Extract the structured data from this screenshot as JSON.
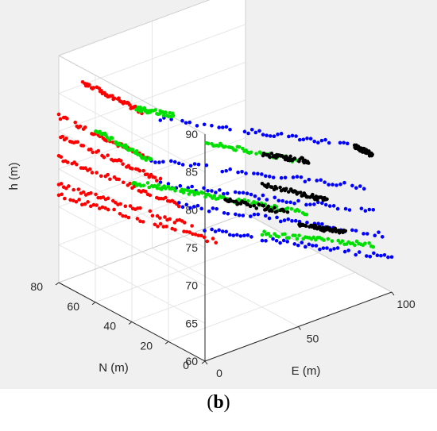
{
  "chart_data": {
    "type": "scatter",
    "title": "",
    "xlabel": "E (m)",
    "ylabel": "N (m)",
    "zlabel": "h (m)",
    "xlim": [
      0,
      100
    ],
    "ylim": [
      0,
      80
    ],
    "zlim": [
      60,
      90
    ],
    "xticks": [
      "0",
      "50",
      "100"
    ],
    "yticks": [
      "0",
      "20",
      "40",
      "60",
      "80"
    ],
    "zticks": [
      "60",
      "65",
      "70",
      "75",
      "80",
      "85",
      "90"
    ],
    "grid": true,
    "series": [
      {
        "color": "#ff0000",
        "tracks": [
          {
            "from": [
              3,
              70,
              87.5
            ],
            "to": [
              20,
              55,
              84.0
            ]
          },
          {
            "from": [
              0,
              80,
              82.0
            ],
            "to": [
              30,
              62,
              76.0
            ]
          },
          {
            "from": [
              0,
              80,
              79.5
            ],
            "to": [
              30,
              55,
              74.0
            ]
          },
          {
            "from": [
              0,
              80,
              76.5
            ],
            "to": [
              35,
              50,
              71.0
            ]
          },
          {
            "from": [
              0,
              80,
              73.0
            ],
            "to": [
              40,
              48,
              68.0
            ]
          },
          {
            "from": [
              0,
              80,
              71.5
            ],
            "to": [
              45,
              40,
              66.5
            ]
          }
        ]
      },
      {
        "color": "#0000ff",
        "tracks": [
          {
            "from": [
              25,
              52,
              83.0
            ],
            "to": [
              90,
              10,
              79.0
            ]
          },
          {
            "from": [
              30,
              60,
              76.0
            ],
            "to": [
              95,
              10,
              73.0
            ]
          },
          {
            "from": [
              30,
              55,
              73.5
            ],
            "to": [
              95,
              5,
              70.5
            ]
          },
          {
            "from": [
              35,
              50,
              71.0
            ],
            "to": [
              95,
              0,
              68.0
            ]
          },
          {
            "from": [
              40,
              45,
              68.0
            ],
            "to": [
              100,
              0,
              64.5
            ]
          }
        ]
      },
      {
        "color": "#00e000",
        "tracks": [
          {
            "from": [
              18,
              56,
              84.5
            ],
            "to": [
              30,
              48,
              83.5
            ]
          },
          {
            "from": [
              10,
              70,
              80.5
            ],
            "to": [
              25,
              55,
              77.0
            ]
          },
          {
            "from": [
              40,
              40,
              80.0
            ],
            "to": [
              70,
              20,
              77.5
            ]
          },
          {
            "from": [
              20,
              60,
              74.0
            ],
            "to": [
              45,
              45,
              72.0
            ]
          },
          {
            "from": [
              45,
              45,
              72.0
            ],
            "to": [
              75,
              20,
              70.0
            ]
          },
          {
            "from": [
              60,
              30,
              67.5
            ],
            "to": [
              95,
              5,
              66.0
            ]
          }
        ]
      },
      {
        "color": "#000000",
        "tracks": [
          {
            "from": [
              60,
              30,
              78.0
            ],
            "to": [
              75,
              20,
              77.0
            ]
          },
          {
            "from": [
              60,
              30,
              74.0
            ],
            "to": [
              80,
              15,
              72.0
            ]
          },
          {
            "from": [
              50,
              40,
              71.5
            ],
            "to": [
              70,
              25,
              70.0
            ]
          },
          {
            "from": [
              70,
              20,
              69.0
            ],
            "to": [
              85,
              10,
              68.0
            ]
          },
          {
            "from": [
              85,
              5,
              80.0
            ],
            "to": [
              90,
              0,
              79.0
            ]
          }
        ]
      }
    ]
  },
  "caption": {
    "open": "(",
    "letter": "b",
    "close": ")"
  }
}
